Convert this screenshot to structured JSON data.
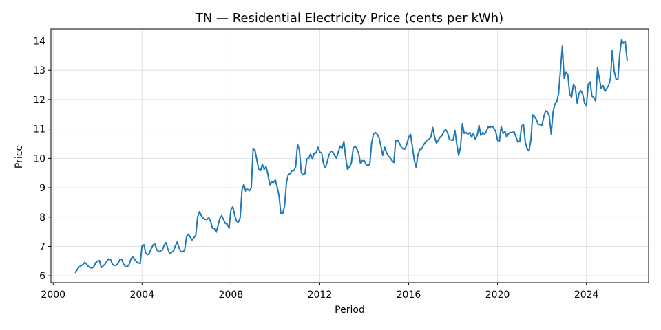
{
  "chart_data": {
    "type": "line",
    "title": "TN — Residential Electricity Price (cents per kWh)",
    "xlabel": "Period",
    "ylabel": "Price",
    "xlim": [
      1999.9,
      2026.8
    ],
    "ylim": [
      5.77,
      14.41
    ],
    "x_ticks": [
      2000,
      2004,
      2008,
      2012,
      2016,
      2020,
      2024
    ],
    "y_ticks": [
      6,
      7,
      8,
      9,
      10,
      11,
      12,
      13,
      14
    ],
    "grid": true,
    "line_color": "#1f77b4",
    "series": [
      {
        "x_start": "2001-01",
        "x_step": "1 month",
        "values": [
          6.12,
          6.22,
          6.3,
          6.35,
          6.38,
          6.46,
          6.4,
          6.32,
          6.28,
          6.26,
          6.32,
          6.45,
          6.5,
          6.52,
          6.28,
          6.34,
          6.4,
          6.5,
          6.58,
          6.55,
          6.4,
          6.35,
          6.36,
          6.42,
          6.55,
          6.57,
          6.4,
          6.32,
          6.31,
          6.38,
          6.58,
          6.65,
          6.56,
          6.48,
          6.44,
          6.42,
          7.02,
          7.06,
          6.77,
          6.72,
          6.77,
          6.93,
          7.05,
          7.08,
          6.88,
          6.82,
          6.85,
          6.88,
          7.05,
          7.13,
          6.9,
          6.75,
          6.8,
          6.85,
          7.02,
          7.15,
          6.95,
          6.82,
          6.82,
          6.87,
          7.32,
          7.42,
          7.32,
          7.22,
          7.3,
          7.38,
          8.0,
          8.18,
          8.05,
          7.97,
          7.92,
          7.92,
          7.98,
          7.86,
          7.62,
          7.62,
          7.48,
          7.7,
          7.95,
          8.05,
          7.92,
          7.78,
          7.76,
          7.62,
          8.25,
          8.35,
          8.08,
          7.86,
          7.82,
          7.98,
          8.92,
          9.12,
          8.88,
          8.95,
          8.9,
          9.0,
          10.32,
          10.28,
          9.95,
          9.62,
          9.58,
          9.8,
          9.62,
          9.72,
          9.45,
          9.1,
          9.2,
          9.18,
          9.26,
          9.02,
          8.72,
          8.12,
          8.12,
          8.38,
          9.18,
          9.45,
          9.48,
          9.58,
          9.58,
          9.72,
          10.48,
          10.28,
          9.52,
          9.44,
          9.48,
          9.98,
          10.0,
          10.15,
          9.98,
          10.18,
          10.18,
          10.38,
          10.22,
          10.18,
          9.82,
          9.68,
          9.88,
          10.12,
          10.24,
          10.22,
          10.1,
          10.0,
          10.22,
          10.42,
          10.32,
          10.58,
          10.02,
          9.62,
          9.72,
          9.82,
          10.32,
          10.42,
          10.32,
          10.18,
          9.82,
          9.92,
          9.92,
          9.8,
          9.75,
          9.8,
          10.52,
          10.82,
          10.88,
          10.82,
          10.7,
          10.42,
          10.1,
          10.38,
          10.2,
          10.08,
          10.02,
          9.92,
          9.86,
          10.62,
          10.62,
          10.52,
          10.38,
          10.32,
          10.32,
          10.48,
          10.72,
          10.82,
          10.4,
          9.95,
          9.7,
          10.12,
          10.3,
          10.32,
          10.45,
          10.55,
          10.62,
          10.65,
          10.72,
          11.05,
          10.72,
          10.52,
          10.62,
          10.72,
          10.78,
          10.92,
          10.98,
          10.88,
          10.65,
          10.62,
          10.62,
          10.95,
          10.48,
          10.1,
          10.38,
          11.18,
          10.85,
          10.88,
          10.82,
          10.88,
          10.72,
          10.85,
          10.65,
          10.78,
          11.12,
          10.78,
          10.88,
          10.82,
          10.92,
          11.08,
          11.05,
          11.1,
          11.02,
          10.92,
          10.62,
          10.58,
          11.08,
          10.85,
          10.92,
          10.72,
          10.85,
          10.88,
          10.88,
          10.9,
          10.72,
          10.55,
          10.58,
          11.1,
          11.15,
          10.55,
          10.32,
          10.25,
          10.62,
          11.48,
          11.42,
          11.32,
          11.15,
          11.15,
          11.12,
          11.42,
          11.62,
          11.58,
          11.42,
          10.82,
          11.58,
          11.85,
          11.92,
          12.22,
          13.02,
          13.82,
          12.72,
          12.95,
          12.85,
          12.18,
          12.08,
          12.52,
          12.42,
          11.88,
          12.22,
          12.3,
          12.2,
          11.88,
          11.8,
          12.52,
          12.6,
          12.12,
          12.08,
          11.95,
          13.1,
          12.72,
          12.38,
          12.48,
          12.28,
          12.38,
          12.48,
          12.72,
          13.68,
          12.98,
          12.7,
          12.68,
          13.55,
          14.05,
          13.92,
          13.98,
          13.35
        ]
      }
    ]
  }
}
